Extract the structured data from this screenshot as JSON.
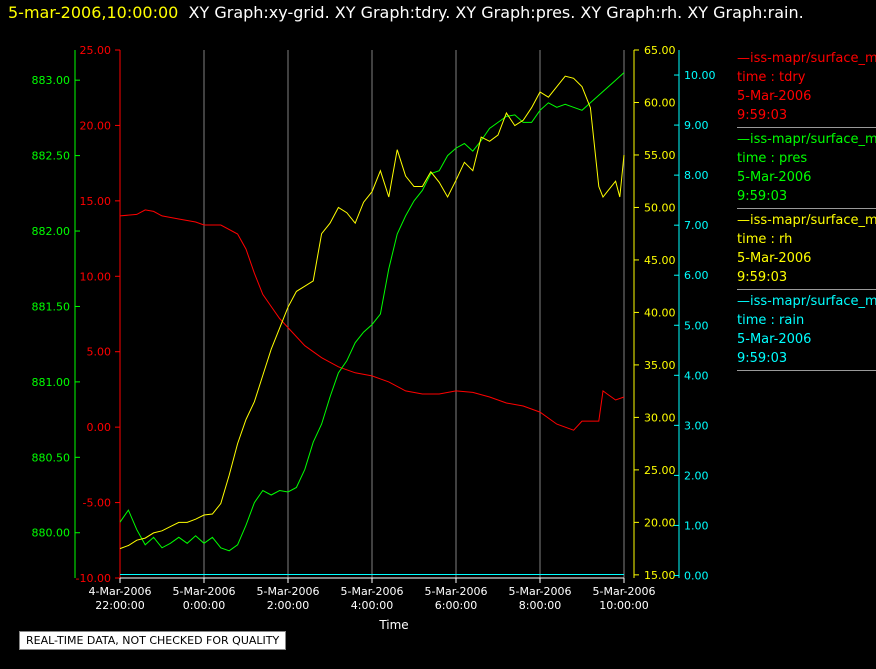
{
  "header": {
    "timestamp": "5-mar-2006,10:00:00",
    "graphs": "XY Graph:xy-grid.  XY Graph:tdry.  XY Graph:pres.  XY Graph:rh.  XY Graph:rain."
  },
  "colors": {
    "tdry": "#ff0000",
    "pres": "#00ff00",
    "rh": "#ffff00",
    "rain": "#00ffff",
    "grid": "#808080",
    "axis_text": "#ffffff"
  },
  "legend": [
    {
      "name": "—iss-mapr/surface_m",
      "field": "time : tdry",
      "date": "5-Mar-2006",
      "time": "9:59:03",
      "color": "#ff0000"
    },
    {
      "name": "—iss-mapr/surface_m",
      "field": "time : pres",
      "date": "5-Mar-2006",
      "time": "9:59:03",
      "color": "#00ff00"
    },
    {
      "name": "—iss-mapr/surface_m",
      "field": "time : rh",
      "date": "5-Mar-2006",
      "time": "9:59:03",
      "color": "#ffff00"
    },
    {
      "name": "—iss-mapr/surface_m",
      "field": "time : rain",
      "date": "5-Mar-2006",
      "time": "9:59:03",
      "color": "#00ffff"
    }
  ],
  "quality_note": "REAL-TIME DATA, NOT CHECKED FOR QUALITY",
  "chart_data": {
    "type": "line",
    "xlabel": "Time",
    "x_ticks": [
      {
        "date": "4-Mar-2006",
        "time": "22:00:00"
      },
      {
        "date": "5-Mar-2006",
        "time": "0:00:00"
      },
      {
        "date": "5-Mar-2006",
        "time": "2:00:00"
      },
      {
        "date": "5-Mar-2006",
        "time": "4:00:00"
      },
      {
        "date": "5-Mar-2006",
        "time": "6:00:00"
      },
      {
        "date": "5-Mar-2006",
        "time": "8:00:00"
      },
      {
        "date": "5-Mar-2006",
        "time": "10:00:00"
      }
    ],
    "x_hours": [
      -2,
      0,
      2,
      4,
      6,
      8,
      10
    ],
    "xlim": [
      -2,
      10
    ],
    "grid": "vertical",
    "axes": {
      "pres": {
        "ylim": [
          879.7,
          883.2
        ],
        "ticks": [
          "880.00",
          "880.50",
          "881.00",
          "881.50",
          "882.00",
          "882.50",
          "883.00"
        ]
      },
      "tdry": {
        "ylim": [
          -10,
          25
        ],
        "ticks": [
          "-10.00",
          "-5.00",
          "0.00",
          "5.00",
          "10.00",
          "15.00",
          "20.00",
          "25.00"
        ]
      },
      "rh": {
        "ylim": [
          14.7,
          65
        ],
        "ticks": [
          "15.00",
          "20.00",
          "25.00",
          "30.00",
          "35.00",
          "40.00",
          "45.00",
          "50.00",
          "55.00",
          "60.00",
          "65.00"
        ]
      },
      "rain": {
        "ylim": [
          -0.05,
          10.5
        ],
        "ticks": [
          "0.00",
          "1.00",
          "2.00",
          "3.00",
          "4.00",
          "5.00",
          "6.00",
          "7.00",
          "8.00",
          "9.00",
          "10.00"
        ]
      }
    },
    "series": [
      {
        "key": "tdry",
        "x": [
          -2,
          -1.6,
          -1.4,
          -1.2,
          -1,
          -0.6,
          -0.2,
          0,
          0.4,
          0.8,
          1,
          1.2,
          1.4,
          1.6,
          1.8,
          2,
          2.4,
          2.8,
          3.2,
          3.6,
          4,
          4.4,
          4.8,
          5.2,
          5.6,
          6,
          6.4,
          6.8,
          7.2,
          7.6,
          8,
          8.4,
          8.8,
          9,
          9.2,
          9.4,
          9.5,
          9.6,
          9.8,
          10
        ],
        "y": [
          14,
          14.1,
          14.4,
          14.3,
          14,
          13.8,
          13.6,
          13.4,
          13.4,
          12.8,
          11.8,
          10.2,
          8.8,
          8,
          7.2,
          6.6,
          5.4,
          4.6,
          4,
          3.6,
          3.4,
          3,
          2.4,
          2.2,
          2.2,
          2.4,
          2.3,
          2,
          1.6,
          1.4,
          1,
          0.2,
          -0.2,
          0.4,
          0.4,
          0.4,
          2.4,
          2.2,
          1.8,
          2
        ]
      },
      {
        "key": "pres",
        "x": [
          -2,
          -1.8,
          -1.6,
          -1.4,
          -1.2,
          -1,
          -0.8,
          -0.6,
          -0.4,
          -0.2,
          0,
          0.2,
          0.4,
          0.6,
          0.8,
          1,
          1.2,
          1.4,
          1.6,
          1.8,
          2,
          2.2,
          2.4,
          2.6,
          2.8,
          3,
          3.2,
          3.4,
          3.6,
          3.8,
          4,
          4.2,
          4.4,
          4.6,
          4.8,
          5,
          5.2,
          5.4,
          5.6,
          5.8,
          6,
          6.2,
          6.4,
          6.6,
          6.8,
          7,
          7.2,
          7.4,
          7.6,
          7.8,
          8,
          8.2,
          8.4,
          8.6,
          8.8,
          9,
          9.2,
          9.4,
          9.6,
          9.8,
          10
        ],
        "y": [
          880.07,
          880.15,
          880.02,
          879.92,
          879.97,
          879.9,
          879.93,
          879.97,
          879.93,
          879.98,
          879.93,
          879.97,
          879.9,
          879.88,
          879.92,
          880.05,
          880.2,
          880.28,
          880.25,
          880.28,
          880.27,
          880.3,
          880.42,
          880.6,
          880.72,
          880.9,
          881.06,
          881.14,
          881.26,
          881.33,
          881.38,
          881.45,
          881.75,
          881.98,
          882.1,
          882.2,
          882.27,
          882.38,
          882.4,
          882.5,
          882.55,
          882.58,
          882.53,
          882.6,
          882.68,
          882.72,
          882.76,
          882.77,
          882.72,
          882.72,
          882.8,
          882.85,
          882.82,
          882.84,
          882.82,
          882.8,
          882.85,
          882.9,
          882.95,
          883,
          883.05
        ]
      },
      {
        "key": "rh",
        "x": [
          -2,
          -1.8,
          -1.6,
          -1.4,
          -1.2,
          -1,
          -0.8,
          -0.6,
          -0.4,
          -0.2,
          0,
          0.2,
          0.4,
          0.6,
          0.8,
          1,
          1.2,
          1.4,
          1.6,
          1.8,
          2,
          2.2,
          2.4,
          2.6,
          2.8,
          3,
          3.2,
          3.4,
          3.6,
          3.8,
          4,
          4.2,
          4.4,
          4.6,
          4.8,
          5,
          5.2,
          5.4,
          5.6,
          5.8,
          6,
          6.2,
          6.4,
          6.6,
          6.8,
          7,
          7.2,
          7.4,
          7.6,
          7.8,
          8,
          8.2,
          8.4,
          8.6,
          8.8,
          9,
          9.2,
          9.4,
          9.5,
          9.6,
          9.8,
          9.9,
          10
        ],
        "y": [
          17.5,
          17.8,
          18.3,
          18.5,
          19,
          19.2,
          19.6,
          20,
          20,
          20.3,
          20.7,
          20.8,
          21.8,
          24.5,
          27.5,
          29.8,
          31.5,
          34,
          36.5,
          38.5,
          40.5,
          42,
          42.5,
          43,
          47.5,
          48.5,
          50,
          49.5,
          48.5,
          50.5,
          51.5,
          53.5,
          51,
          55.5,
          53,
          52,
          52,
          53.4,
          52.4,
          51,
          52.6,
          54.3,
          53.5,
          56.7,
          56.3,
          56.9,
          59,
          57.8,
          58.3,
          59.5,
          61,
          60.5,
          61.5,
          62.5,
          62.3,
          61.5,
          59.5,
          52,
          51,
          51.5,
          52.5,
          51,
          55
        ]
      },
      {
        "key": "rain",
        "x": [
          -2,
          10
        ],
        "y": [
          0.02,
          0.02
        ]
      }
    ]
  }
}
